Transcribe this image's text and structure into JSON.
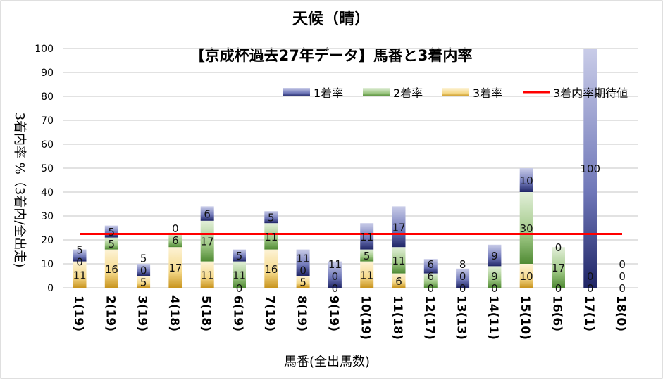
{
  "chart_data": {
    "type": "bar",
    "stacked": true,
    "title": "天候（晴）",
    "subtitle": "【京成杯過去27年データ】馬番と3着内率",
    "xlabel": "馬番(全出馬数)",
    "ylabel": "3着内率 %（3着内/全出走)",
    "ylim": [
      0,
      100
    ],
    "yticks": [
      0,
      10,
      20,
      30,
      40,
      50,
      60,
      70,
      80,
      90,
      100
    ],
    "grid": true,
    "legend_position": "top-right",
    "categories": [
      "1(19)",
      "2(19)",
      "3(19)",
      "4(18)",
      "5(18)",
      "6(19)",
      "7(19)",
      "8(19)",
      "9(19)",
      "10(19)",
      "11(18)",
      "12(17)",
      "13(13)",
      "14(11)",
      "15(10)",
      "16(6)",
      "17(1)",
      "18(0)"
    ],
    "series": [
      {
        "name": "3着率",
        "color": "#d9a62e",
        "values": [
          11,
          16,
          5,
          17,
          11,
          0,
          16,
          5,
          0,
          11,
          6,
          0,
          0,
          0,
          10,
          0,
          0,
          0
        ]
      },
      {
        "name": "2着率",
        "color": "#5f9a3e",
        "values": [
          0,
          5,
          0,
          6,
          17,
          11,
          11,
          0,
          0,
          5,
          11,
          6,
          0,
          9,
          30,
          17,
          0,
          0
        ]
      },
      {
        "name": "1着率",
        "color": "#3b4590",
        "values": [
          5,
          5,
          5,
          0,
          6,
          5,
          5,
          11,
          11,
          11,
          17,
          6,
          8,
          9,
          10,
          0,
          100,
          0
        ]
      }
    ],
    "expected_line": {
      "name": "3着内率期待値",
      "color": "#ff0000",
      "value": 22.5
    }
  }
}
